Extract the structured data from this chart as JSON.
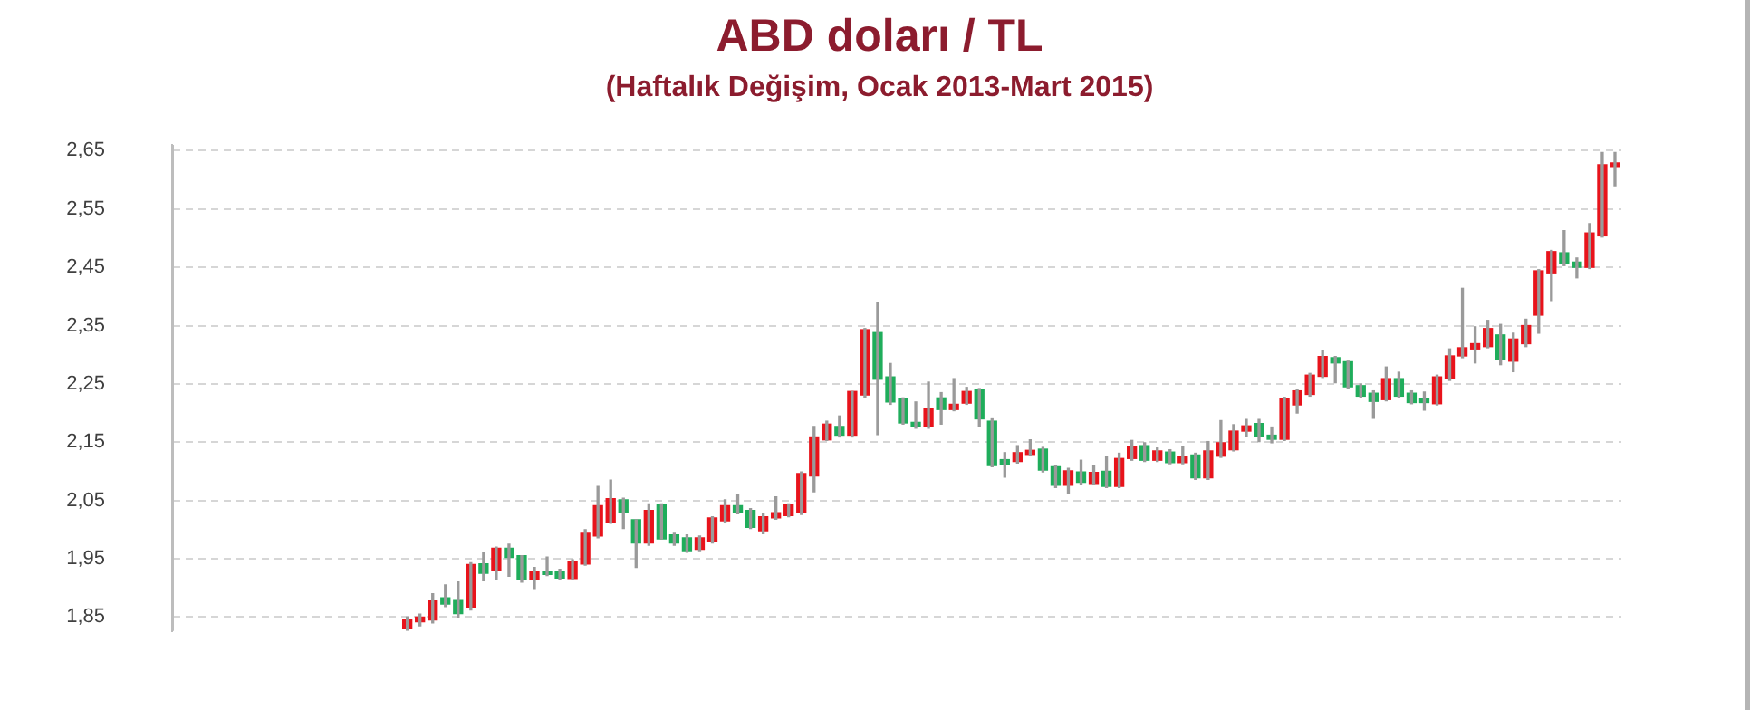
{
  "chart_data": {
    "type": "candlestick",
    "title": "ABD doları / TL",
    "subtitle": "(Haftalık Değişim, Ocak 2013-Mart 2015)",
    "categories": [
      null,
      null,
      null,
      null,
      null,
      null,
      null,
      null,
      null,
      null,
      null,
      null,
      null,
      null,
      null,
      null,
      null,
      null,
      null,
      null,
      null,
      null,
      null,
      null,
      null,
      null,
      null,
      null,
      null,
      null,
      null,
      null,
      null,
      null,
      null,
      null,
      null,
      null,
      null,
      null,
      null,
      null,
      null,
      null,
      null,
      null,
      null,
      null,
      null,
      null,
      null,
      null,
      null,
      null,
      null,
      null,
      null,
      null,
      null,
      null,
      null,
      null,
      null,
      null,
      null,
      null,
      null,
      null,
      null,
      null,
      null,
      null,
      null,
      null,
      null,
      null,
      null,
      null,
      null,
      null,
      null,
      null,
      null,
      null,
      null,
      null,
      null,
      null,
      null,
      null,
      null,
      null,
      null,
      null,
      null,
      null,
      null,
      null,
      null,
      null,
      null,
      null,
      null,
      null,
      null,
      null,
      null,
      null,
      null,
      null,
      null,
      null,
      null,
      null
    ],
    "ohlc": [
      null,
      null,
      null,
      null,
      null,
      null,
      null,
      null,
      null,
      null,
      null,
      null,
      null,
      null,
      null,
      null,
      null,
      null,
      [
        1.83,
        1.85,
        1.827,
        1.845
      ],
      [
        1.842,
        1.855,
        1.835,
        1.85
      ],
      [
        1.845,
        1.89,
        1.84,
        1.878
      ],
      [
        1.883,
        1.905,
        1.868,
        1.872
      ],
      [
        1.88,
        1.91,
        1.85,
        1.856
      ],
      [
        1.867,
        1.943,
        1.862,
        1.94
      ],
      [
        1.941,
        1.96,
        1.912,
        1.925
      ],
      [
        1.93,
        1.97,
        1.915,
        1.968
      ],
      [
        1.968,
        1.975,
        1.92,
        1.952
      ],
      [
        1.955,
        1.955,
        1.91,
        1.914
      ],
      [
        1.914,
        1.935,
        1.899,
        1.928
      ],
      [
        1.928,
        1.953,
        1.921,
        1.923
      ],
      [
        1.928,
        1.932,
        1.914,
        1.917
      ],
      [
        1.916,
        1.948,
        1.914,
        1.946
      ],
      [
        1.941,
        2.0,
        1.939,
        1.995
      ],
      [
        1.989,
        2.074,
        1.986,
        2.041
      ],
      [
        2.013,
        2.085,
        2.011,
        2.053
      ],
      [
        2.051,
        2.054,
        2.002,
        2.029
      ],
      [
        2.017,
        2.017,
        1.935,
        1.977
      ],
      [
        1.977,
        2.044,
        1.973,
        2.033
      ],
      [
        2.042,
        2.044,
        1.984,
        1.984
      ],
      [
        1.991,
        1.995,
        1.973,
        1.977
      ],
      [
        1.986,
        1.991,
        1.961,
        1.964
      ],
      [
        1.966,
        1.989,
        1.964,
        1.986
      ],
      [
        1.98,
        2.022,
        1.977,
        2.02
      ],
      [
        2.015,
        2.051,
        2.013,
        2.041
      ],
      [
        2.041,
        2.06,
        2.027,
        2.029
      ],
      [
        2.033,
        2.036,
        2.002,
        2.004
      ],
      [
        1.998,
        2.027,
        1.993,
        2.022
      ],
      [
        2.02,
        2.056,
        2.018,
        2.029
      ],
      [
        2.024,
        2.044,
        2.022,
        2.042
      ],
      [
        2.029,
        2.099,
        2.026,
        2.096
      ],
      [
        2.092,
        2.177,
        2.065,
        2.159
      ],
      [
        2.154,
        2.186,
        2.153,
        2.181
      ],
      [
        2.177,
        2.195,
        2.159,
        2.162
      ],
      [
        2.162,
        2.237,
        2.159,
        2.237
      ],
      [
        2.231,
        2.345,
        2.226,
        2.343
      ],
      [
        2.338,
        2.389,
        2.163,
        2.258
      ],
      [
        2.262,
        2.285,
        2.215,
        2.219
      ],
      [
        2.224,
        2.226,
        2.181,
        2.183
      ],
      [
        2.184,
        2.219,
        2.174,
        2.177
      ],
      [
        2.177,
        2.253,
        2.174,
        2.208
      ],
      [
        2.226,
        2.235,
        2.181,
        2.206
      ],
      [
        2.206,
        2.259,
        2.204,
        2.215
      ],
      [
        2.217,
        2.244,
        2.215,
        2.237
      ],
      [
        2.24,
        2.242,
        2.177,
        2.19
      ],
      [
        2.186,
        2.19,
        2.108,
        2.11
      ],
      [
        2.12,
        2.132,
        2.09,
        2.111
      ],
      [
        2.117,
        2.144,
        2.114,
        2.132
      ],
      [
        2.129,
        2.154,
        2.127,
        2.136
      ],
      [
        2.138,
        2.141,
        2.099,
        2.102
      ],
      [
        2.108,
        2.11,
        2.072,
        2.076
      ],
      [
        2.076,
        2.105,
        2.063,
        2.101
      ],
      [
        2.099,
        2.119,
        2.078,
        2.081
      ],
      [
        2.079,
        2.11,
        2.077,
        2.098
      ],
      [
        2.1,
        2.126,
        2.072,
        2.074
      ],
      [
        2.074,
        2.131,
        2.072,
        2.122
      ],
      [
        2.122,
        2.153,
        2.119,
        2.142
      ],
      [
        2.144,
        2.149,
        2.117,
        2.119
      ],
      [
        2.119,
        2.14,
        2.117,
        2.135
      ],
      [
        2.133,
        2.137,
        2.113,
        2.115
      ],
      [
        2.115,
        2.142,
        2.113,
        2.126
      ],
      [
        2.128,
        2.131,
        2.086,
        2.089
      ],
      [
        2.089,
        2.151,
        2.086,
        2.135
      ],
      [
        2.126,
        2.187,
        2.124,
        2.149
      ],
      [
        2.137,
        2.18,
        2.135,
        2.169
      ],
      [
        2.169,
        2.189,
        2.16,
        2.178
      ],
      [
        2.182,
        2.189,
        2.151,
        2.16
      ],
      [
        2.162,
        2.176,
        2.149,
        2.155
      ],
      [
        2.155,
        2.227,
        2.153,
        2.225
      ],
      [
        2.214,
        2.241,
        2.2,
        2.238
      ],
      [
        2.232,
        2.268,
        2.229,
        2.265
      ],
      [
        2.263,
        2.307,
        2.261,
        2.297
      ],
      [
        2.295,
        2.297,
        2.252,
        2.286
      ],
      [
        2.288,
        2.289,
        2.243,
        2.245
      ],
      [
        2.247,
        2.25,
        2.227,
        2.229
      ],
      [
        2.234,
        2.238,
        2.191,
        2.22
      ],
      [
        2.223,
        2.279,
        2.221,
        2.259
      ],
      [
        2.259,
        2.27,
        2.227,
        2.229
      ],
      [
        2.234,
        2.238,
        2.216,
        2.218
      ],
      [
        2.225,
        2.236,
        2.205,
        2.218
      ],
      [
        2.216,
        2.265,
        2.214,
        2.262
      ],
      [
        2.259,
        2.31,
        2.256,
        2.298
      ],
      [
        2.298,
        2.414,
        2.295,
        2.312
      ],
      [
        2.31,
        2.348,
        2.286,
        2.319
      ],
      [
        2.314,
        2.359,
        2.312,
        2.345
      ],
      [
        2.334,
        2.352,
        2.283,
        2.292
      ],
      [
        2.289,
        2.337,
        2.271,
        2.327
      ],
      [
        2.319,
        2.361,
        2.314,
        2.35
      ],
      [
        2.368,
        2.446,
        2.337,
        2.444
      ],
      [
        2.439,
        2.479,
        2.393,
        2.477
      ],
      [
        2.475,
        2.513,
        2.453,
        2.456
      ],
      [
        2.459,
        2.466,
        2.432,
        2.45
      ],
      [
        2.45,
        2.525,
        2.448,
        2.509
      ],
      [
        2.504,
        2.647,
        2.502,
        2.626
      ],
      [
        2.623,
        2.647,
        2.59,
        2.629
      ]
    ],
    "colors": [
      null,
      null,
      null,
      null,
      null,
      null,
      null,
      null,
      null,
      null,
      null,
      null,
      null,
      null,
      null,
      null,
      null,
      null,
      "#e8131b",
      "#e8131b",
      "#e8131b",
      "#1fad5b",
      "#1fad5b",
      "#e8131b",
      "#1fad5b",
      "#e8131b",
      "#1fad5b",
      "#1fad5b",
      "#e8131b",
      "#1fad5b",
      "#1fad5b",
      "#e8131b",
      "#e8131b",
      "#e8131b",
      "#e8131b",
      "#1fad5b",
      "#1fad5b",
      "#e8131b",
      "#1fad5b",
      "#1fad5b",
      "#1fad5b",
      "#e8131b",
      "#e8131b",
      "#e8131b",
      "#1fad5b",
      "#1fad5b",
      "#e8131b",
      "#e8131b",
      "#e8131b",
      "#e8131b",
      "#e8131b",
      "#e8131b",
      "#1fad5b",
      "#e8131b",
      "#e8131b",
      "#1fad5b",
      "#1fad5b",
      "#1fad5b",
      "#1fad5b",
      "#e8131b",
      "#1fad5b",
      "#e8131b",
      "#e8131b",
      "#1fad5b",
      "#1fad5b",
      "#1fad5b",
      "#e8131b",
      "#e8131b",
      "#1fad5b",
      "#1fad5b",
      "#e8131b",
      "#1fad5b",
      "#e8131b",
      "#1fad5b",
      "#e8131b",
      "#e8131b",
      "#1fad5b",
      "#e8131b",
      "#1fad5b",
      "#e8131b",
      "#1fad5b",
      "#e8131b",
      "#e8131b",
      "#e8131b",
      "#e8131b",
      "#1fad5b",
      "#1fad5b",
      "#e8131b",
      "#e8131b",
      "#e8131b",
      "#e8131b",
      "#1fad5b",
      "#1fad5b",
      "#1fad5b",
      "#1fad5b",
      "#e8131b",
      "#1fad5b",
      "#1fad5b",
      "#1fad5b",
      "#e8131b",
      "#e8131b",
      "#e8131b",
      "#e8131b",
      "#e8131b",
      "#1fad5b",
      "#e8131b",
      "#e8131b",
      "#e8131b",
      "#e8131b",
      "#1fad5b",
      "#1fad5b",
      "#e8131b",
      "#e8131b",
      "#e8131b"
    ],
    "ylim": [
      1.826,
      2.66
    ],
    "yticks": [
      {
        "value": 1.85,
        "label": "1,85"
      },
      {
        "value": 1.95,
        "label": "1,95"
      },
      {
        "value": 2.05,
        "label": "2,05"
      },
      {
        "value": 2.15,
        "label": "2,15"
      },
      {
        "value": 2.25,
        "label": "2,25"
      },
      {
        "value": 2.35,
        "label": "2,35"
      },
      {
        "value": 2.45,
        "label": "2,45"
      },
      {
        "value": 2.55,
        "label": "2,55"
      },
      {
        "value": 2.65,
        "label": "2,65"
      }
    ],
    "grid": "y",
    "legend": false
  }
}
